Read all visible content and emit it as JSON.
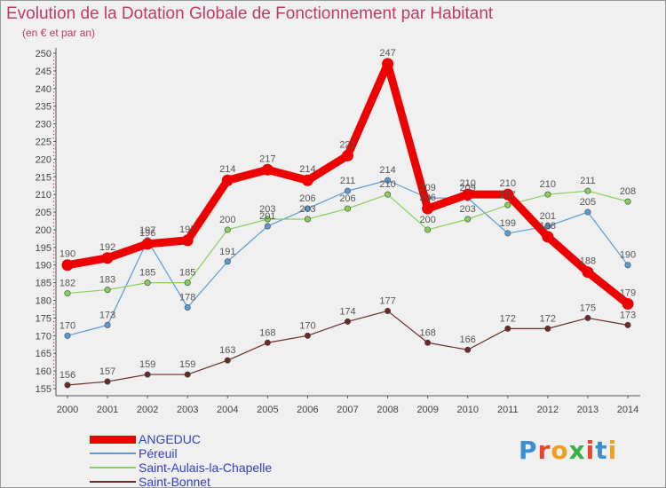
{
  "header": {
    "title": "Evolution de la Dotation Globale de Fonctionnement par Habitant",
    "subtitle": "(en € et par an)"
  },
  "logo": {
    "text": "Proxiti"
  },
  "chart_data": {
    "type": "line",
    "title": "Evolution de la Dotation Globale de Fonctionnement par Habitant",
    "subtitle": "(en € et par an)",
    "xlabel": "",
    "ylabel": "",
    "categories": [
      "2000",
      "2001",
      "2002",
      "2003",
      "2004",
      "2005",
      "2006",
      "2007",
      "2008",
      "2009",
      "2010",
      "2011",
      "2012",
      "2013",
      "2014"
    ],
    "ylim": [
      155,
      250
    ],
    "ytick_step": 5,
    "grid": false,
    "legend_position": "bottom-left",
    "series": [
      {
        "name": "ANGEDUC",
        "color": "#ee0000",
        "emphasis": true,
        "values": [
          190,
          192,
          196,
          197,
          214,
          217,
          214,
          221,
          247,
          206,
          210,
          210,
          198,
          188,
          179
        ]
      },
      {
        "name": "Péreuil",
        "color": "#5b9bd5",
        "values": [
          170,
          173,
          197,
          178,
          191,
          201,
          206,
          211,
          214,
          209,
          209,
          199,
          201,
          205,
          190
        ]
      },
      {
        "name": "Saint-Aulais-la-Chapelle",
        "color": "#86d05a",
        "values": [
          182,
          183,
          185,
          185,
          200,
          203,
          203,
          206,
          210,
          200,
          203,
          207,
          210,
          211,
          208
        ]
      },
      {
        "name": "Saint-Bonnet",
        "color": "#6b2a2a",
        "values": [
          156,
          157,
          159,
          159,
          163,
          168,
          170,
          174,
          177,
          168,
          166,
          172,
          172,
          175,
          173
        ]
      }
    ]
  }
}
